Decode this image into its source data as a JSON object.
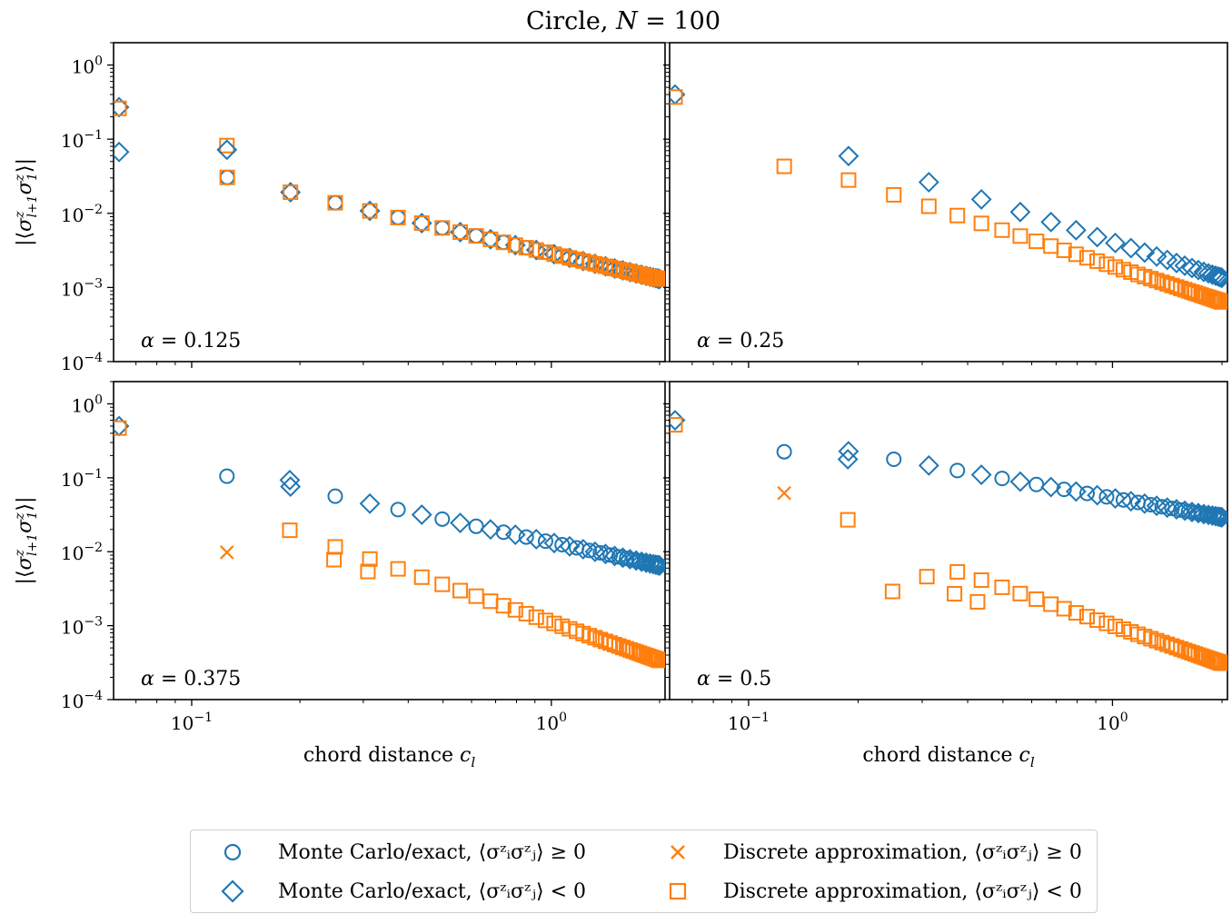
{
  "title": "Circle, N = 100",
  "shared_xlabel": "chord distance c_l",
  "shared_ylabel": "|⟨σ^z_{l+1} σ^z_1⟩|",
  "colors": {
    "blue": "#1f77b4",
    "orange": "#ff7f0e"
  },
  "legend": [
    {
      "label": "Monte Carlo/exact, ⟨σᶻᵢσᶻⱼ⟩ ≥ 0",
      "marker": "circle",
      "color": "#1f77b4"
    },
    {
      "label": "Discrete approximation, ⟨σᶻᵢσᶻⱼ⟩ ≥ 0",
      "marker": "x",
      "color": "#ff7f0e"
    },
    {
      "label": "Monte Carlo/exact, ⟨σᶻᵢσᶻⱼ⟩ < 0",
      "marker": "diamond",
      "color": "#1f77b4"
    },
    {
      "label": "Discrete approximation, ⟨σᶻᵢσᶻⱼ⟩ < 0",
      "marker": "square",
      "color": "#ff7f0e"
    }
  ],
  "chart_data": [
    {
      "type": "scatter",
      "panel": "top-left",
      "annotation": "α = 0.125",
      "x_scale": "log",
      "y_scale": "log",
      "xlim": [
        0.0628,
        2.0
      ],
      "ylim": [
        0.0001,
        2.0
      ],
      "x_ticks": [
        "10⁻¹",
        "10⁰"
      ],
      "y_ticks": [
        "10⁰",
        "10⁻¹",
        "10⁻²",
        "10⁻³",
        "10⁻⁴"
      ],
      "xlabel": "",
      "ylabel": "|⟨σ^z_{l+1} σ^z_1⟩|",
      "series": [
        {
          "name": "Monte Carlo/exact, ⟨σᶻᵢσᶻⱼ⟩ ≥ 0",
          "marker": "circle",
          "sign": "pos",
          "law": {
            "A": 0.0013,
            "p": 1.14
          },
          "l_range": [
            2,
            50,
            2
          ]
        },
        {
          "name": "Monte Carlo/exact, ⟨σᶻᵢσᶻⱼ⟩ < 0",
          "marker": "diamond",
          "sign": "neg",
          "law": {
            "A": 0.0013,
            "p": 1.14
          },
          "l_range": [
            1,
            49,
            2
          ]
        },
        {
          "name": "Discrete approximation, ⟨σᶻᵢσᶻⱼ⟩ < 0",
          "marker": "square",
          "sign": "neg",
          "law": {
            "A": 0.0013,
            "p": 1.14
          },
          "l_range": [
            2,
            50,
            1
          ]
        }
      ],
      "extra_points": [
        {
          "marker": "diamond",
          "x": 0.0628,
          "y": 0.27
        },
        {
          "marker": "square",
          "x": 0.0628,
          "y": 0.26
        },
        {
          "marker": "square",
          "x": 0.1253,
          "y": 0.082
        },
        {
          "marker": "diamond",
          "x": 0.1253,
          "y": 0.072
        }
      ]
    },
    {
      "type": "scatter",
      "panel": "top-right",
      "annotation": "α = 0.25",
      "x_scale": "log",
      "y_scale": "log",
      "xlim": [
        0.0628,
        2.0
      ],
      "ylim": [
        0.0001,
        2.0
      ],
      "x_ticks": [
        "10⁻¹",
        "10⁰"
      ],
      "y_ticks": [],
      "series": [
        {
          "name": "Monte Carlo/exact, ⟨σᶻᵢσᶻⱼ⟩ < 0",
          "marker": "diamond",
          "sign": "neg",
          "law": {
            "A": 0.00135,
            "p": 1.6
          },
          "l_range": [
            3,
            49,
            2
          ]
        },
        {
          "name": "Discrete approximation, ⟨σᶻᵢσᶻⱼ⟩ < 0",
          "marker": "square",
          "sign": "neg",
          "law": {
            "A": 0.00064,
            "p": 1.6
          },
          "l_range": [
            3,
            50,
            1
          ]
        }
      ],
      "extra_points": [
        {
          "marker": "diamond",
          "x": 0.0628,
          "y": 0.4
        },
        {
          "marker": "square",
          "x": 0.0628,
          "y": 0.37
        },
        {
          "marker": "square",
          "x": 0.1253,
          "y": 0.043
        }
      ]
    },
    {
      "type": "scatter",
      "panel": "bottom-left",
      "annotation": "α = 0.375",
      "x_scale": "log",
      "y_scale": "log",
      "xlim": [
        0.0628,
        2.0
      ],
      "ylim": [
        0.0001,
        2.0
      ],
      "x_ticks": [
        "10⁻¹",
        "10⁰"
      ],
      "y_ticks": [
        "10⁰",
        "10⁻¹",
        "10⁻²",
        "10⁻³",
        "10⁻⁴"
      ],
      "xlabel": "chord distance c_l",
      "ylabel": "|⟨σ^z_{l+1} σ^z_1⟩|",
      "series": [
        {
          "name": "Monte Carlo/exact, ⟨σᶻᵢσᶻⱼ⟩ ≥ 0",
          "marker": "circle",
          "sign": "pos",
          "law": {
            "A": 0.0065,
            "p": 1.04
          },
          "l_range": [
            4,
            50,
            2
          ]
        },
        {
          "name": "Monte Carlo/exact, ⟨σᶻᵢσᶻⱼ⟩ < 0",
          "marker": "diamond",
          "sign": "neg",
          "law": {
            "A": 0.0065,
            "p": 1.04
          },
          "l_range": [
            3,
            49,
            2
          ]
        },
        {
          "name": "Discrete approximation, ⟨σᶻᵢσᶻⱼ⟩ < 0",
          "marker": "square",
          "sign": "neg",
          "law": {
            "A": 0.00034,
            "p": 1.7
          },
          "l_range": [
            4,
            50,
            1
          ]
        }
      ],
      "extra_points": [
        {
          "marker": "diamond",
          "x": 0.0628,
          "y": 0.5
        },
        {
          "marker": "square",
          "x": 0.0628,
          "y": 0.47
        },
        {
          "marker": "circle",
          "x": 0.1253,
          "y": 0.105
        },
        {
          "marker": "x",
          "x": 0.1253,
          "y": 0.0098
        },
        {
          "marker": "diamond",
          "x": 0.1874,
          "y": 0.093
        },
        {
          "marker": "square",
          "x": 0.1874,
          "y": 0.0195
        },
        {
          "marker": "square",
          "x": 0.2487,
          "y": 0.0078
        },
        {
          "marker": "square",
          "x": 0.309,
          "y": 0.0054
        }
      ]
    },
    {
      "type": "scatter",
      "panel": "bottom-right",
      "annotation": "α = 0.5",
      "x_scale": "log",
      "y_scale": "log",
      "xlim": [
        0.0628,
        2.0
      ],
      "ylim": [
        0.0001,
        2.0
      ],
      "x_ticks": [
        "10⁻¹",
        "10⁰"
      ],
      "y_ticks": [],
      "xlabel": "chord distance c_l",
      "series": [
        {
          "name": "Monte Carlo/exact, ⟨σᶻᵢσᶻⱼ⟩ ≥ 0",
          "marker": "circle",
          "sign": "pos",
          "law": {
            "A": 0.0292,
            "p": 0.87
          },
          "l_range": [
            4,
            50,
            2
          ]
        },
        {
          "name": "Monte Carlo/exact, ⟨σᶻᵢσᶻⱼ⟩ < 0",
          "marker": "diamond",
          "sign": "neg",
          "law": {
            "A": 0.0292,
            "p": 0.87
          },
          "l_range": [
            3,
            49,
            2
          ]
        },
        {
          "name": "Discrete approximation, ⟨σᶻᵢσᶻⱼ⟩ < 0",
          "marker": "square",
          "sign": "neg",
          "law": {
            "A": 0.00031,
            "p": 1.7
          },
          "l_range": [
            6,
            50,
            1
          ]
        }
      ],
      "extra_points": [
        {
          "marker": "diamond",
          "x": 0.0628,
          "y": 0.6
        },
        {
          "marker": "square",
          "x": 0.0628,
          "y": 0.52
        },
        {
          "marker": "circle",
          "x": 0.1253,
          "y": 0.225
        },
        {
          "marker": "x",
          "x": 0.1253,
          "y": 0.062
        },
        {
          "marker": "diamond",
          "x": 0.1874,
          "y": 0.178
        },
        {
          "marker": "square",
          "x": 0.1874,
          "y": 0.027
        },
        {
          "marker": "square",
          "x": 0.2487,
          "y": 0.0029
        },
        {
          "marker": "square",
          "x": 0.309,
          "y": 0.0046
        },
        {
          "marker": "square",
          "x": 0.3681,
          "y": 0.0027
        },
        {
          "marker": "square",
          "x": 0.4258,
          "y": 0.0021
        }
      ]
    }
  ]
}
